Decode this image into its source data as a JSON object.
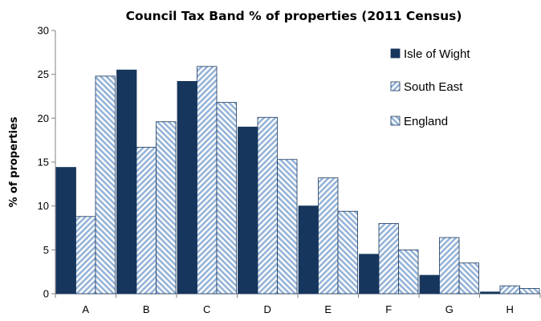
{
  "chart_data": {
    "type": "bar",
    "title": "Council Tax Band % of properties (2011 Census)",
    "xlabel": "",
    "ylabel": "% of properties",
    "ylim": [
      0,
      30
    ],
    "yticks": [
      "0",
      "5",
      "10",
      "15",
      "20",
      "25",
      "30"
    ],
    "categories": [
      "A",
      "B",
      "C",
      "D",
      "E",
      "F",
      "G",
      "H"
    ],
    "series": [
      {
        "name": "Isle of Wight",
        "values": [
          14.4,
          25.5,
          24.2,
          19.0,
          10.0,
          4.5,
          2.1,
          0.2
        ]
      },
      {
        "name": "South East",
        "values": [
          8.8,
          16.7,
          25.9,
          20.1,
          13.2,
          8.0,
          6.4,
          0.9
        ]
      },
      {
        "name": "England",
        "values": [
          24.8,
          19.6,
          21.8,
          15.3,
          9.4,
          5.0,
          3.5,
          0.6
        ]
      }
    ],
    "legend_position": "top-right",
    "grid": false
  },
  "colors": {
    "isle_of_wight": "#17365d",
    "hatch_stripe": "#95b3d7",
    "hatch_background": "#ffffff"
  }
}
